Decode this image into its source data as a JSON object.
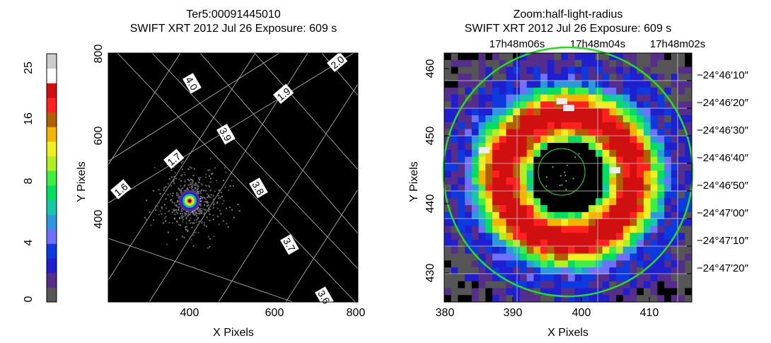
{
  "left_panel": {
    "title_line1": "Ter5:00091445010",
    "title_line2": "SWIFT XRT    2012 Jul 26     Exposure: 609 s",
    "xlabel": "X Pixels",
    "ylabel": "Y Pixels"
  },
  "right_panel": {
    "title_line1": "Zoom:half-light-radius",
    "title_line2": "SWIFT XRT    2012 Jul 26     Exposure: 609 s",
    "xlabel": "X Pixels",
    "ylabel": "Y Pixels",
    "ra_labels": [
      "17h48m06s",
      "17h48m04s",
      "17h48m02s"
    ],
    "dec_labels": [
      "−24°46′10″",
      "−24°46′20″",
      "−24°46′30″",
      "−24°46′40″",
      "−24°46′50″",
      "−24°47′00″",
      "−24°47′10″",
      "−24°47′20″"
    ]
  },
  "colorbar": {
    "tick_labels": [
      "0",
      "4",
      "8",
      "16",
      "25"
    ],
    "colors": [
      "#555555",
      "#552d8a",
      "#1f1fd0",
      "#0a3ae0",
      "#7070ff",
      "#2a9adc",
      "#15c8a8",
      "#00e060",
      "#40f040",
      "#b0f020",
      "#f0f020",
      "#f4b400",
      "#b06000",
      "#ff2020",
      "#d01010",
      "#ffffff",
      "#cccccc"
    ]
  },
  "chart_data": [
    {
      "type": "heatmap",
      "title": "Ter5:00091445010 SWIFT XRT 2012 Jul 26 Exposure: 609 s",
      "xlabel": "X Pixels",
      "ylabel": "Y Pixels",
      "xlim": [
        200,
        800
      ],
      "ylim": [
        200,
        800
      ],
      "x_ticks": [
        400,
        600,
        800
      ],
      "y_ticks": [
        400,
        600,
        800
      ],
      "source_center": [
        397,
        440
      ],
      "grid_labels": [
        "1.6",
        "1.7",
        "3.8",
        "3.9",
        "4.0",
        "1.9",
        "2.0",
        "3.7",
        "3.6"
      ]
    },
    {
      "type": "heatmap",
      "title": "Zoom:half-light-radius SWIFT XRT 2012 Jul 26 Exposure: 609 s",
      "xlabel": "X Pixels",
      "ylabel": "Y Pixels",
      "xlim": [
        380,
        416
      ],
      "ylim": [
        425.5,
        462
      ],
      "x_ticks": [
        380,
        390,
        400,
        410
      ],
      "y_ticks": [
        430,
        440,
        450,
        460
      ],
      "center": [
        397,
        443.5
      ],
      "outer_circle_radius": 18,
      "inner_circle_radius": 3.5
    }
  ]
}
